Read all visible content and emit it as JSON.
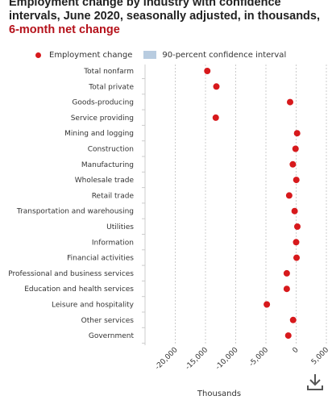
{
  "title": {
    "main": "Employment change by industry with confidence intervals, June 2020, seasonally adjusted, in thousands, ",
    "highlight": "6-month net change"
  },
  "legend": {
    "employment_change": "Employment change",
    "confidence_interval": "90-percent confidence interval"
  },
  "colors": {
    "point": "#d7191c",
    "confidence": "#b8cce0",
    "title_accent": "#b5121b"
  },
  "icons": {
    "download": "download-icon"
  },
  "chart_data": {
    "type": "scatter",
    "title": "Employment change by industry with confidence intervals, June 2020, seasonally adjusted, in thousands, 6-month net change",
    "xlabel": "Thousands",
    "ylabel": "",
    "xlim": [
      -20000,
      5000
    ],
    "xticks": [
      -20000,
      -15000,
      -10000,
      -5000,
      0,
      5000
    ],
    "xtick_labels": [
      "-20,000",
      "-15,000",
      "-10,000",
      "-5,000",
      "0",
      "5,000"
    ],
    "grid": true,
    "legend_position": "top",
    "categories": [
      "Total nonfarm",
      "Total private",
      "Goods-producing",
      "Service providing",
      "Mining and logging",
      "Construction",
      "Manufacturing",
      "Wholesale trade",
      "Retail trade",
      "Transportation and warehousing",
      "Utilities",
      "Information",
      "Financial activities",
      "Professional and business services",
      "Education and health services",
      "Leisure and hospitality",
      "Other services",
      "Government"
    ],
    "series": [
      {
        "name": "Employment change",
        "values": [
          -14700,
          -13200,
          -1000,
          -13300,
          160,
          -100,
          -550,
          30,
          -1150,
          -250,
          200,
          0,
          70,
          -1550,
          -1550,
          -4850,
          -500,
          -1300
        ]
      }
    ]
  }
}
